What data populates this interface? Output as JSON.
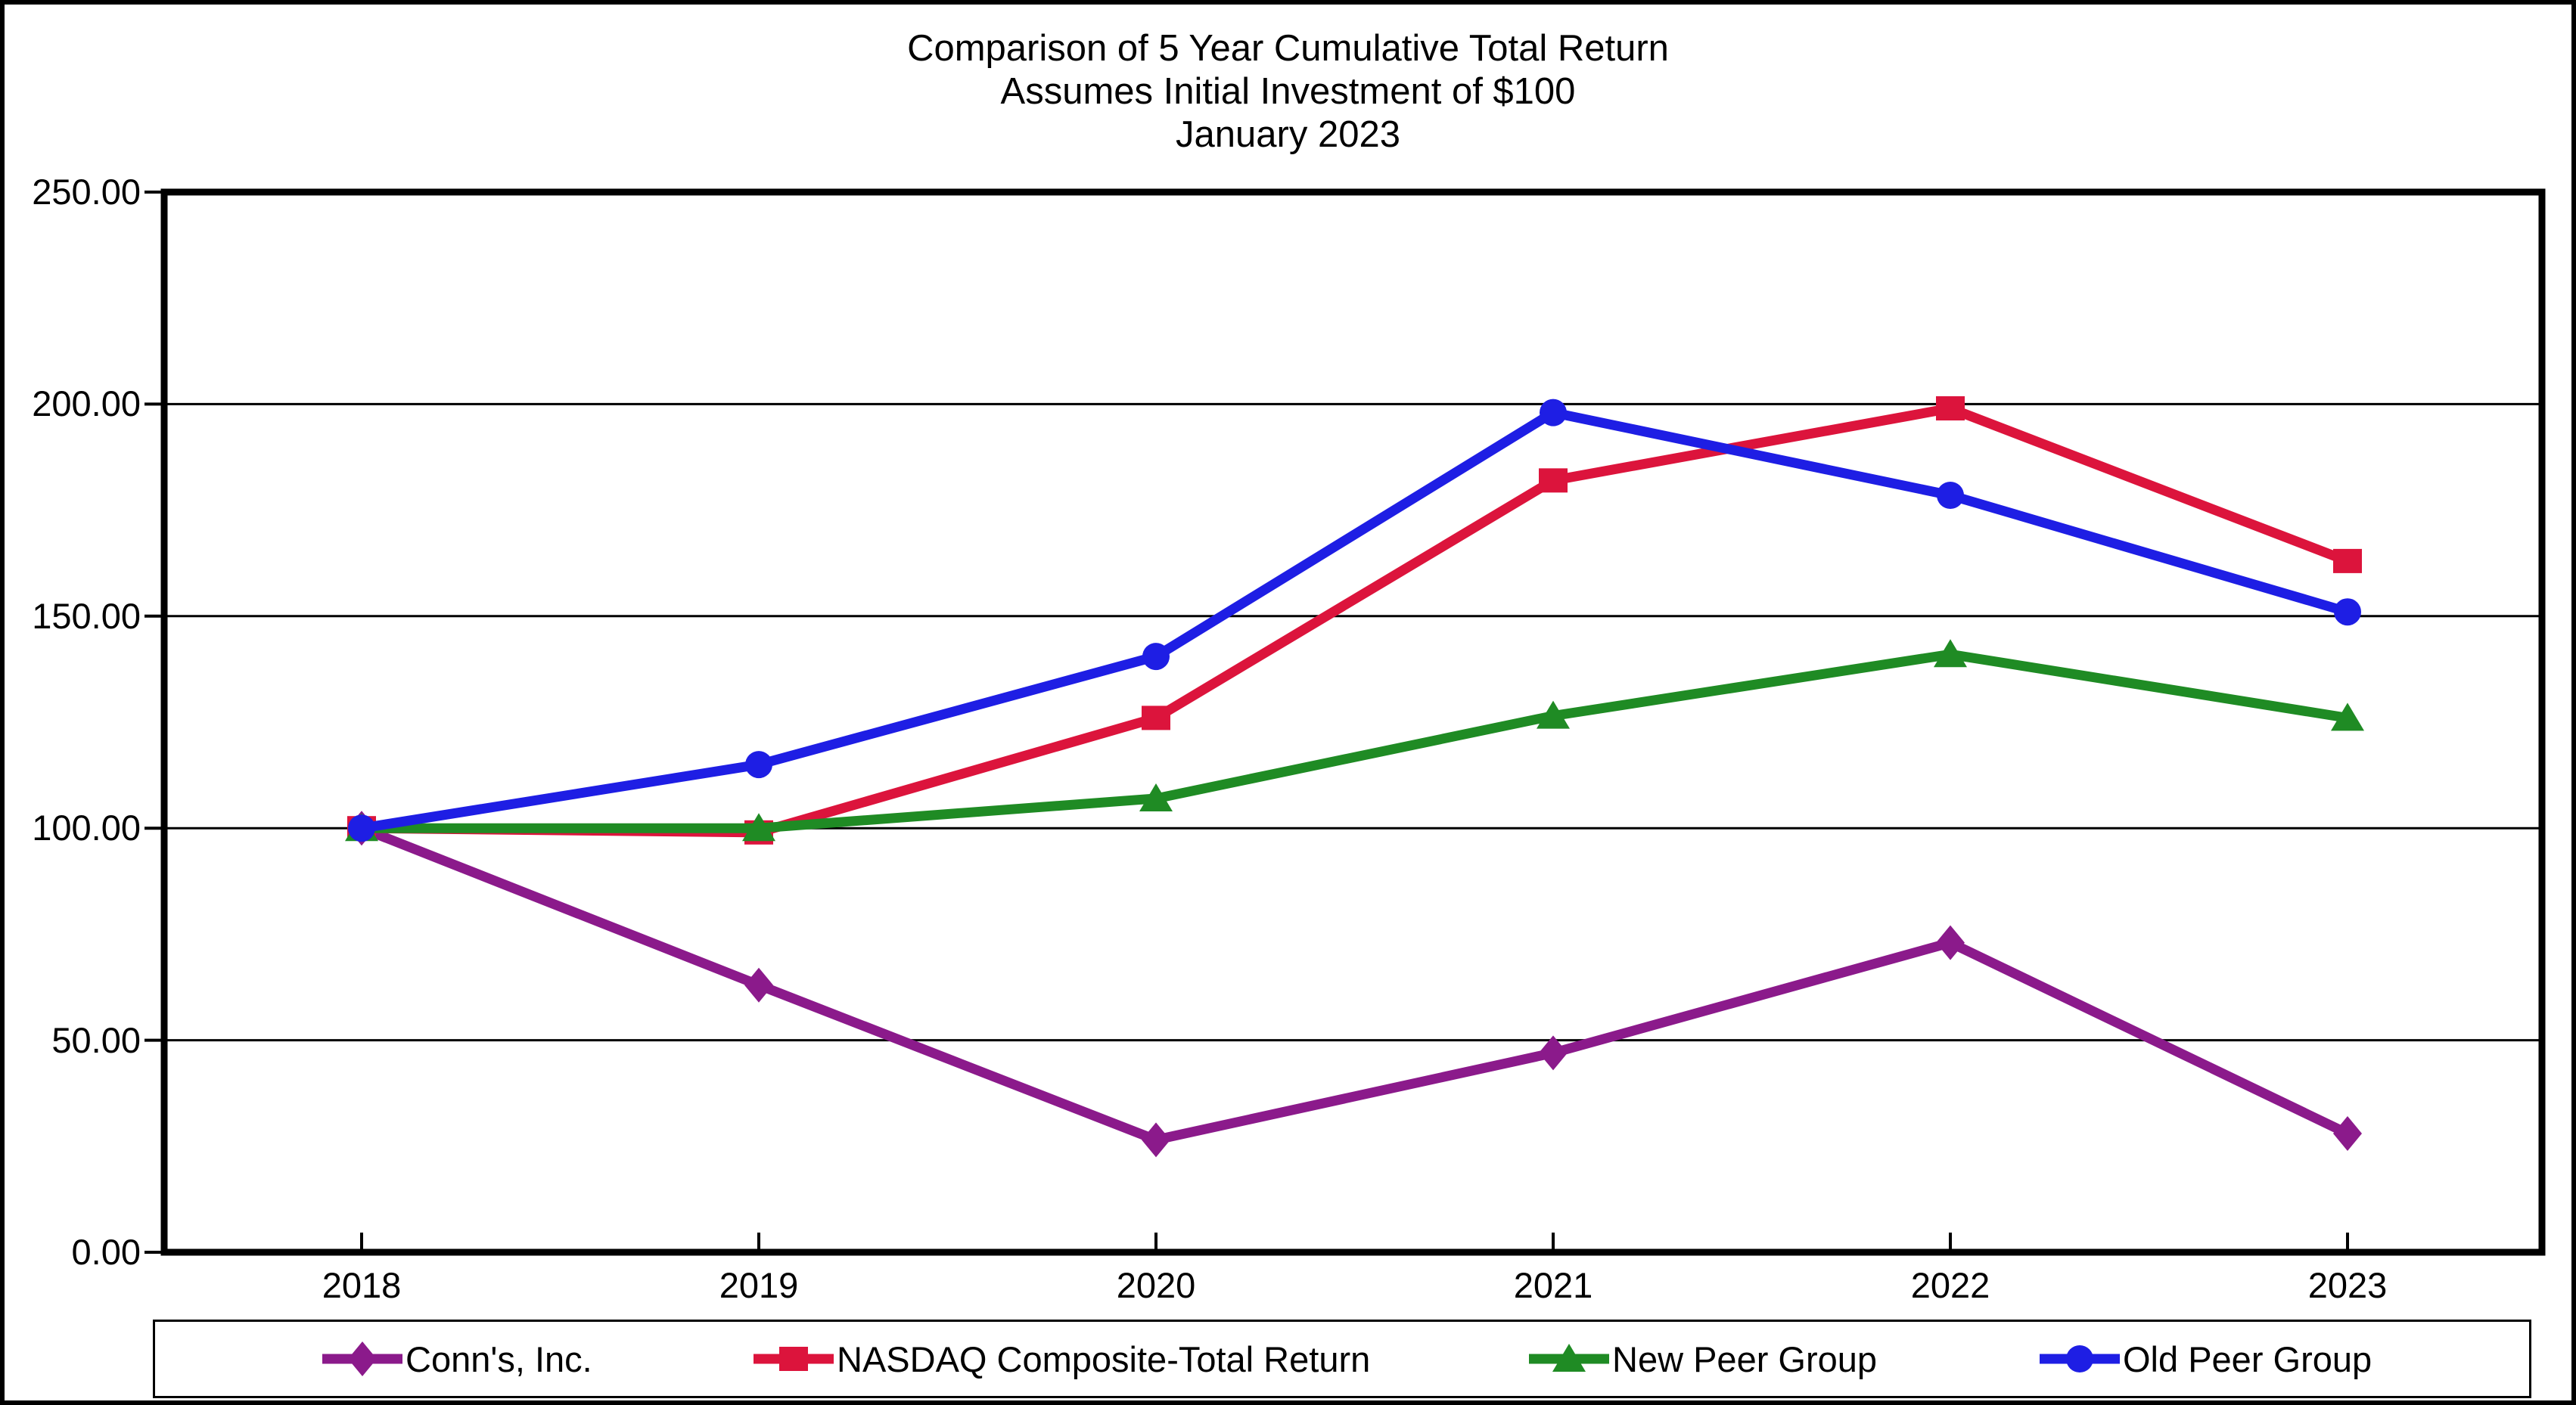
{
  "title": {
    "line1": "Comparison of 5 Year Cumulative Total Return",
    "line2": "Assumes Initial Investment of $100",
    "line3": "January 2023"
  },
  "chart_data": {
    "type": "line",
    "categories": [
      "2018",
      "2019",
      "2020",
      "2021",
      "2022",
      "2023"
    ],
    "series": [
      {
        "name": "Conn's, Inc.",
        "color": "#8B1A8B",
        "marker": "diamond",
        "values": [
          100,
          63,
          26.5,
          47,
          73,
          28
        ]
      },
      {
        "name": "NASDAQ Composite-Total Return",
        "color": "#DC143C",
        "marker": "square",
        "values": [
          100,
          99,
          126,
          182,
          199,
          163
        ]
      },
      {
        "name": "New Peer Group",
        "color": "#1F8B24",
        "marker": "triangle",
        "values": [
          100,
          100,
          107,
          126.5,
          141,
          126
        ]
      },
      {
        "name": "Old Peer Group",
        "color": "#1E1EE4",
        "marker": "circle",
        "values": [
          100,
          115,
          140.5,
          198,
          178.5,
          151
        ]
      }
    ],
    "ylim": [
      0,
      250
    ],
    "y_tick_step": 50,
    "y_tick_labels": [
      "250.00",
      "200.00",
      "150.00",
      "100.00",
      "50.00",
      "0.00"
    ],
    "y_tick_values": [
      250,
      200,
      150,
      100,
      50,
      0
    ],
    "grid": true,
    "legend_position": "bottom",
    "axis_color": "#000000",
    "background": "#FFFFFF"
  }
}
